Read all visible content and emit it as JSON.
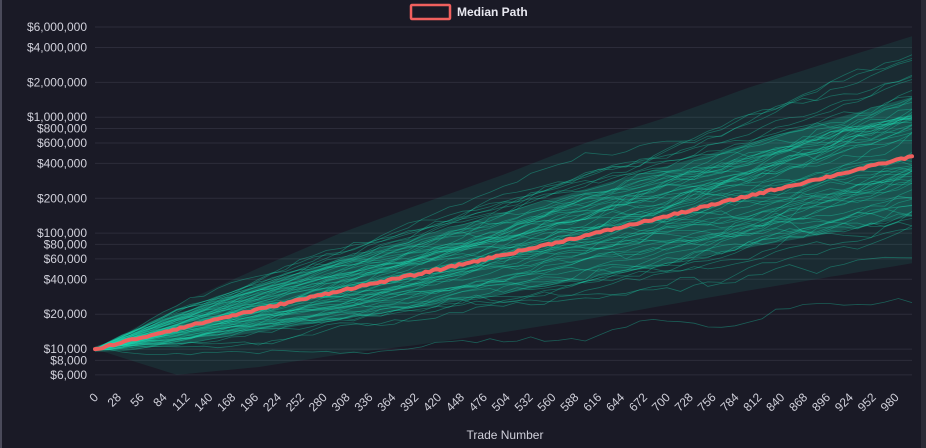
{
  "chart_data": {
    "type": "line",
    "title": "",
    "xlabel": "Trade Number",
    "ylabel": "",
    "y_scale": "log",
    "x_range": [
      0,
      1000
    ],
    "y_range": [
      5000,
      6500000
    ],
    "grid": true,
    "legend_position": "top-center",
    "x_ticks": [
      "0",
      "28",
      "56",
      "84",
      "112",
      "140",
      "168",
      "196",
      "224",
      "252",
      "280",
      "308",
      "336",
      "364",
      "392",
      "420",
      "448",
      "476",
      "504",
      "532",
      "560",
      "588",
      "616",
      "644",
      "672",
      "700",
      "728",
      "756",
      "784",
      "812",
      "840",
      "868",
      "896",
      "924",
      "952",
      "980"
    ],
    "y_ticks": [
      {
        "value": 6000,
        "label": "$6,000"
      },
      {
        "value": 8000,
        "label": "$8,000"
      },
      {
        "value": 10000,
        "label": "$10,000"
      },
      {
        "value": 20000,
        "label": "$20,000"
      },
      {
        "value": 40000,
        "label": "$40,000"
      },
      {
        "value": 60000,
        "label": "$60,000"
      },
      {
        "value": 80000,
        "label": "$80,000"
      },
      {
        "value": 100000,
        "label": "$100,000"
      },
      {
        "value": 200000,
        "label": "$200,000"
      },
      {
        "value": 400000,
        "label": "$400,000"
      },
      {
        "value": 600000,
        "label": "$600,000"
      },
      {
        "value": 800000,
        "label": "$800,000"
      },
      {
        "value": 1000000,
        "label": "$1,000,000"
      },
      {
        "value": 2000000,
        "label": "$2,000,000"
      },
      {
        "value": 4000000,
        "label": "$4,000,000"
      },
      {
        "value": 6000000,
        "label": "$6,000,000"
      }
    ],
    "series": [
      {
        "name": "Median Path",
        "color": "#f0605e",
        "x": [
          0,
          100,
          200,
          300,
          400,
          500,
          600,
          700,
          800,
          900,
          1000
        ],
        "values": [
          10000,
          15000,
          22000,
          32000,
          45000,
          65000,
          95000,
          140000,
          210000,
          310000,
          460000
        ]
      }
    ],
    "simulation_band": {
      "color": "#1ee0b4",
      "x": [
        0,
        100,
        200,
        300,
        400,
        500,
        600,
        700,
        800,
        900,
        1000
      ],
      "dense_upper": [
        10000,
        20000,
        35000,
        60000,
        95000,
        150000,
        240000,
        380000,
        600000,
        950000,
        1500000
      ],
      "dense_lower": [
        10000,
        11000,
        14000,
        18000,
        23000,
        30000,
        40000,
        55000,
        75000,
        100000,
        140000
      ],
      "outer_upper": [
        10000,
        24000,
        50000,
        100000,
        180000,
        320000,
        600000,
        1000000,
        1800000,
        3000000,
        5000000
      ],
      "outer_lower": [
        10000,
        6000,
        7000,
        9000,
        11000,
        14000,
        18000,
        24000,
        32000,
        42000,
        55000
      ]
    }
  }
}
